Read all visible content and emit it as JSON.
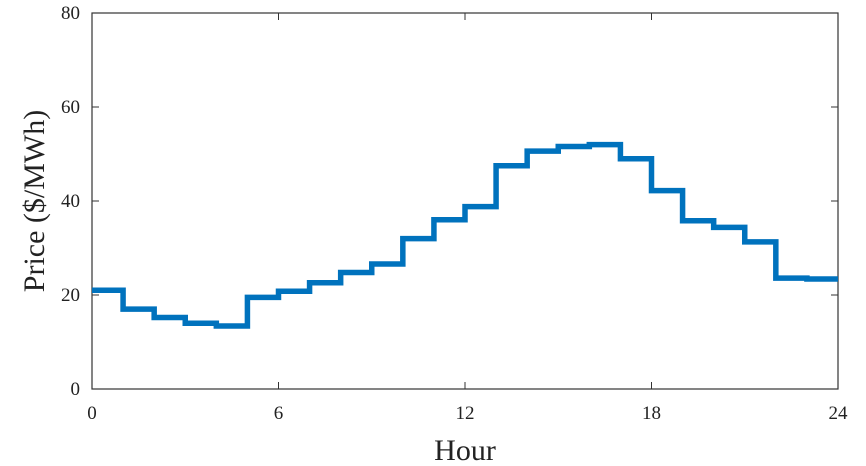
{
  "chart_data": {
    "type": "line",
    "step": true,
    "title": "",
    "xlabel": "Hour",
    "ylabel": "Price ($/MWh)",
    "xlim": [
      0,
      24
    ],
    "ylim": [
      0,
      80
    ],
    "xticks": [
      "0",
      "6",
      "12",
      "18",
      "24"
    ],
    "yticks": [
      "0",
      "20",
      "40",
      "60",
      "80"
    ],
    "grid": false,
    "legend": "none",
    "series": [
      {
        "color": "#0072bd",
        "x": [
          0,
          1,
          2,
          3,
          4,
          5,
          6,
          7,
          8,
          9,
          10,
          11,
          12,
          13,
          14,
          15,
          16,
          17,
          18,
          19,
          20,
          21,
          22,
          23
        ],
        "values": [
          21,
          17,
          15.2,
          14,
          13.4,
          19.5,
          20.8,
          22.6,
          24.8,
          26.6,
          32,
          36,
          38.8,
          47.5,
          50.6,
          51.6,
          52,
          49,
          42.2,
          35.8,
          34.4,
          31.3,
          23.6,
          23.4
        ]
      }
    ]
  }
}
